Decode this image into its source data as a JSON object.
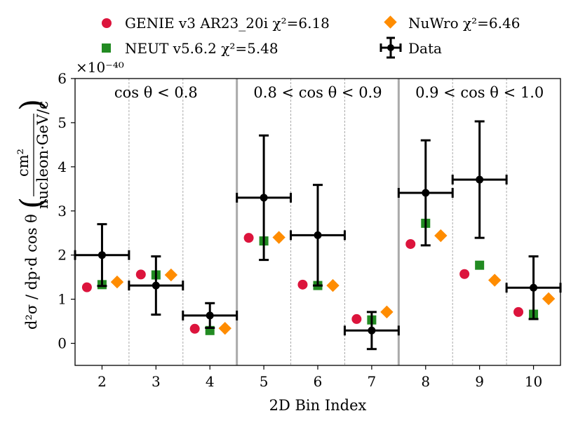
{
  "chart_data": {
    "type": "scatter",
    "title": "",
    "xlabel": "2D Bin Index",
    "ylabel_left": "d²σ / dp·d cos θ",
    "ylabel_unit_num": "cm²",
    "ylabel_unit_den": "nucleon·GeV/c",
    "y_scale_label": "×10⁻⁴⁰",
    "xlim": [
      1.5,
      10.5
    ],
    "ylim": [
      -0.5,
      6
    ],
    "x_ticks": [
      "2",
      "3",
      "4",
      "5",
      "6",
      "7",
      "8",
      "9",
      "10"
    ],
    "y_ticks": [
      "0",
      "1",
      "2",
      "3",
      "4",
      "5",
      "6"
    ],
    "regions": [
      {
        "label": "cos θ < 0.8",
        "from": 1.5,
        "to": 4.5
      },
      {
        "label": "0.8 < cos θ < 0.9",
        "from": 4.5,
        "to": 7.5
      },
      {
        "label": "0.9 < cos θ < 1.0",
        "from": 7.5,
        "to": 10.5
      }
    ],
    "dashed_boundaries": [
      2.5,
      3.5,
      5.5,
      6.5,
      8.5,
      9.5
    ],
    "solid_boundaries": [
      4.5,
      7.5
    ],
    "x": [
      2,
      3,
      4,
      5,
      6,
      7,
      8,
      9,
      10
    ],
    "series": [
      {
        "name": "GENIE v3 AR23_20i",
        "chi2": "χ²=6.18",
        "marker": "circle",
        "color": "#dc143c",
        "offset": -0.28,
        "values": [
          1.27,
          1.56,
          0.33,
          2.39,
          1.33,
          0.55,
          2.25,
          1.57,
          0.71
        ]
      },
      {
        "name": "NEUT v5.6.2",
        "chi2": "χ²=5.48",
        "marker": "square",
        "color": "#228b22",
        "offset": 0,
        "values": [
          1.33,
          1.55,
          0.29,
          2.32,
          1.31,
          0.53,
          2.72,
          1.77,
          0.66
        ]
      },
      {
        "name": "NuWro",
        "chi2": "χ²=6.46",
        "marker": "diamond",
        "color": "#ff8c00",
        "offset": 0.28,
        "values": [
          1.39,
          1.55,
          0.34,
          2.4,
          1.31,
          0.71,
          2.44,
          1.43,
          1.01
        ]
      },
      {
        "name": "Data",
        "chi2": "",
        "marker": "errorbar",
        "color": "#000000",
        "offset": 0,
        "values": [
          2.0,
          1.31,
          0.63,
          3.3,
          2.45,
          0.29,
          3.41,
          3.71,
          1.26
        ],
        "yerr": [
          0.7,
          0.66,
          0.28,
          1.41,
          1.14,
          0.42,
          1.19,
          1.32,
          0.71
        ],
        "xerr": 0.5
      }
    ],
    "legend": {
      "placement": "top, outside plot",
      "entries": [
        {
          "label": "GENIE v3 AR23_20i χ²=6.18",
          "marker": "circle",
          "color": "#dc143c"
        },
        {
          "label": "NuWro χ²=6.46",
          "marker": "diamond",
          "color": "#ff8c00"
        },
        {
          "label": "NEUT v5.6.2 χ²=5.48",
          "marker": "square",
          "color": "#228b22"
        },
        {
          "label": "Data",
          "marker": "errorbar",
          "color": "#000000"
        }
      ]
    }
  }
}
